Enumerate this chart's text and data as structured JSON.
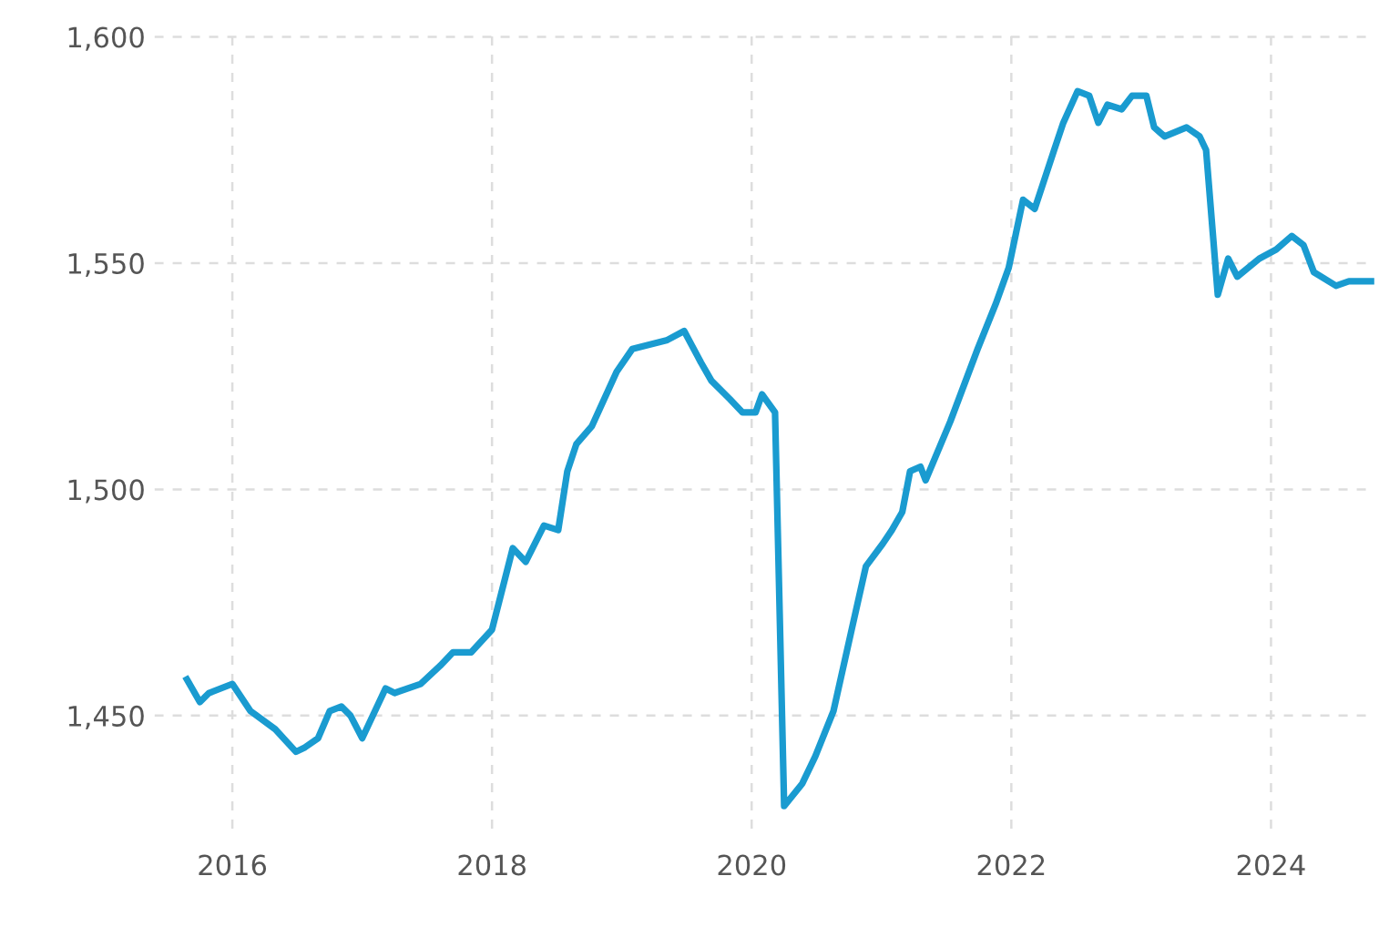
{
  "chart_data": {
    "type": "line",
    "x": [
      2015.65,
      2015.75,
      2015.82,
      2016.0,
      2016.14,
      2016.33,
      2016.49,
      2016.56,
      2016.66,
      2016.75,
      2016.84,
      2016.91,
      2017.0,
      2017.18,
      2017.25,
      2017.45,
      2017.6,
      2017.7,
      2017.84,
      2018.0,
      2018.16,
      2018.26,
      2018.4,
      2018.51,
      2018.58,
      2018.65,
      2018.77,
      2018.96,
      2019.08,
      2019.35,
      2019.48,
      2019.61,
      2019.69,
      2019.83,
      2019.93,
      2020.03,
      2020.08,
      2020.18,
      2020.25,
      2020.39,
      2020.49,
      2020.63,
      2020.77,
      2020.88,
      2021.01,
      2021.08,
      2021.16,
      2021.22,
      2021.3,
      2021.34,
      2021.53,
      2021.74,
      2021.88,
      2021.98,
      2022.09,
      2022.18,
      2022.33,
      2022.4,
      2022.51,
      2022.6,
      2022.67,
      2022.74,
      2022.85,
      2022.93,
      2023.04,
      2023.1,
      2023.18,
      2023.35,
      2023.45,
      2023.5,
      2023.59,
      2023.67,
      2023.74,
      2023.91,
      2024.04,
      2024.16,
      2024.25,
      2024.33,
      2024.5,
      2024.6,
      2024.77
    ],
    "series": [
      {
        "color": "#1a9bd0",
        "values": [
          1458,
          1453,
          1455,
          1457,
          1451,
          1447,
          1442,
          1443,
          1445,
          1451,
          1452,
          1450,
          1445,
          1456,
          1455,
          1457,
          1461,
          1464,
          1464,
          1469,
          1487,
          1484,
          1492,
          1491,
          1504,
          1510,
          1514,
          1526,
          1531,
          1533,
          1535,
          1528,
          1524,
          1520,
          1517,
          1517,
          1521,
          1517,
          1430,
          1435,
          1441,
          1451,
          1469,
          1483,
          1488,
          1491,
          1495,
          1504,
          1505,
          1502,
          1515,
          1531,
          1541,
          1549,
          1564,
          1562,
          1575,
          1581,
          1588,
          1587,
          1581,
          1585,
          1584,
          1587,
          1587,
          1580,
          1578,
          1580,
          1578,
          1575,
          1543,
          1551,
          1547,
          1551,
          1553,
          1556,
          1554,
          1548,
          1545,
          1546,
          1546
        ]
      }
    ],
    "xlim": [
      2015.4,
      2024.8
    ],
    "xticks": [
      2016,
      2018,
      2020,
      2022,
      2024
    ],
    "ylim": [
      1425,
      1602
    ],
    "yticks": [
      {
        "value": 1450,
        "label": "1,450"
      },
      {
        "value": 1500,
        "label": "1,500"
      },
      {
        "value": 1550,
        "label": "1,550"
      },
      {
        "value": 1600,
        "label": "1,600"
      }
    ],
    "grid": true,
    "marker": "none",
    "line_style": "solid"
  }
}
